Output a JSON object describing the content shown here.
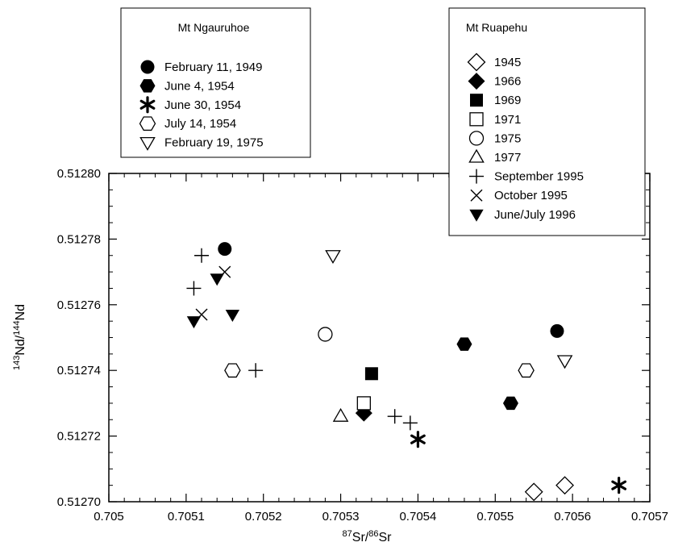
{
  "chart_data": {
    "type": "scatter",
    "xlabel": "87Sr/86Sr",
    "ylabel": "143Nd/144Nd",
    "xlim": [
      0.705,
      0.7057
    ],
    "ylim": [
      0.5127,
      0.5128
    ],
    "x_ticks": [
      "0.705",
      "0.7051",
      "0.7052",
      "0.7053",
      "0.7054",
      "0.7055",
      "0.7056",
      "0.7057"
    ],
    "y_ticks": [
      "0.51270",
      "0.51272",
      "0.51274",
      "0.51276",
      "0.51278",
      "0.51280"
    ],
    "grid": false,
    "legends": [
      {
        "title": "Mt Ngauruhoe",
        "placement": "top-left",
        "entries": [
          {
            "label": "February 11, 1949",
            "marker": "filled-circle"
          },
          {
            "label": "June 4, 1954",
            "marker": "filled-hexagon"
          },
          {
            "label": "June 30, 1954",
            "marker": "asterisk"
          },
          {
            "label": "July 14, 1954",
            "marker": "open-hexagon"
          },
          {
            "label": "February 19, 1975",
            "marker": "open-triangle-down"
          }
        ]
      },
      {
        "title": "Mt Ruapehu",
        "placement": "top-right",
        "entries": [
          {
            "label": "1945",
            "marker": "open-diamond"
          },
          {
            "label": "1966",
            "marker": "filled-diamond"
          },
          {
            "label": "1969",
            "marker": "filled-square"
          },
          {
            "label": "1971",
            "marker": "open-square"
          },
          {
            "label": "1975",
            "marker": "open-circle"
          },
          {
            "label": "1977",
            "marker": "open-triangle-up"
          },
          {
            "label": "September 1995",
            "marker": "plus"
          },
          {
            "label": "October 1995",
            "marker": "cross"
          },
          {
            "label": "June/July 1996",
            "marker": "filled-triangle-down"
          }
        ]
      }
    ],
    "series": [
      {
        "name": "February 11, 1949",
        "marker": "filled-circle",
        "points": [
          [
            0.70515,
            0.512777
          ],
          [
            0.70558,
            0.512752
          ]
        ]
      },
      {
        "name": "June 4, 1954",
        "marker": "filled-hexagon",
        "points": [
          [
            0.70546,
            0.512748
          ],
          [
            0.70552,
            0.51273
          ]
        ]
      },
      {
        "name": "June 30, 1954",
        "marker": "asterisk",
        "points": [
          [
            0.7054,
            0.512719
          ],
          [
            0.70566,
            0.512705
          ]
        ]
      },
      {
        "name": "July 14, 1954",
        "marker": "open-hexagon",
        "points": [
          [
            0.70516,
            0.51274
          ],
          [
            0.70554,
            0.51274
          ]
        ]
      },
      {
        "name": "February 19, 1975",
        "marker": "open-triangle-down",
        "points": [
          [
            0.70529,
            0.512775
          ],
          [
            0.70559,
            0.512743
          ]
        ]
      },
      {
        "name": "1945",
        "marker": "open-diamond",
        "points": [
          [
            0.70555,
            0.512703
          ],
          [
            0.70559,
            0.512705
          ]
        ]
      },
      {
        "name": "1966",
        "marker": "filled-diamond",
        "points": [
          [
            0.70533,
            0.512727
          ]
        ]
      },
      {
        "name": "1969",
        "marker": "filled-square",
        "points": [
          [
            0.70534,
            0.512739
          ]
        ]
      },
      {
        "name": "1971",
        "marker": "open-square",
        "points": [
          [
            0.70533,
            0.51273
          ]
        ]
      },
      {
        "name": "1975",
        "marker": "open-circle",
        "points": [
          [
            0.70528,
            0.512751
          ]
        ]
      },
      {
        "name": "1977",
        "marker": "open-triangle-up",
        "points": [
          [
            0.7053,
            0.512726
          ]
        ]
      },
      {
        "name": "September 1995",
        "marker": "plus",
        "points": [
          [
            0.70512,
            0.512775
          ],
          [
            0.70511,
            0.512765
          ],
          [
            0.70519,
            0.51274
          ],
          [
            0.70537,
            0.512726
          ],
          [
            0.70539,
            0.512724
          ]
        ]
      },
      {
        "name": "October 1995",
        "marker": "cross",
        "points": [
          [
            0.70515,
            0.51277
          ],
          [
            0.70512,
            0.512757
          ]
        ]
      },
      {
        "name": "June/July 1996",
        "marker": "filled-triangle-down",
        "points": [
          [
            0.70514,
            0.512768
          ],
          [
            0.70516,
            0.512757
          ],
          [
            0.70511,
            0.512755
          ]
        ]
      }
    ]
  }
}
